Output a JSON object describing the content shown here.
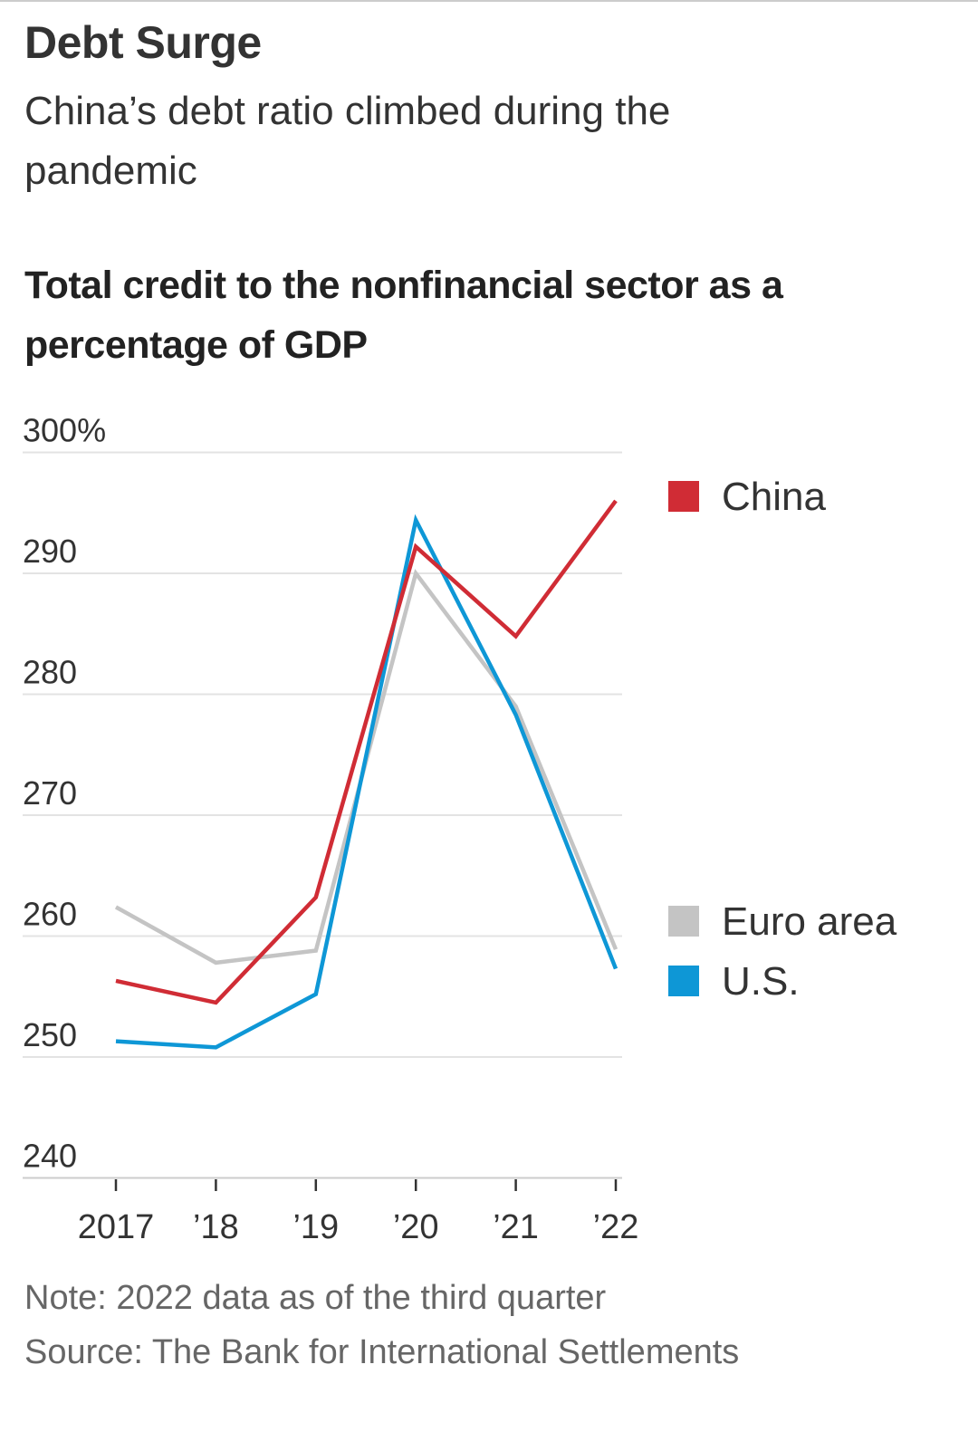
{
  "title": "Debt Surge",
  "subtitle": "China’s debt ratio climbed during the pandemic",
  "note": "Note: 2022 data as of the third quarter",
  "source": "Source: The Bank for International Settlements",
  "chart_data": {
    "type": "line",
    "title": "Total credit to the nonfinancial sector as a percentage of GDP",
    "xlabel": "",
    "ylabel": "",
    "x": [
      2017,
      2018,
      2019,
      2020,
      2021,
      2022
    ],
    "x_tick_labels": [
      "2017",
      "’18",
      "’19",
      "’20",
      "’21",
      "’22"
    ],
    "y_ticks": [
      300,
      290,
      280,
      270,
      260,
      250,
      240
    ],
    "y_tick_labels": [
      "300%",
      "290",
      "280",
      "270",
      "260",
      "250",
      "240"
    ],
    "ylim": [
      240,
      300
    ],
    "grid": true,
    "legend_placement": "right",
    "series": [
      {
        "name": "China",
        "color": "#d02c35",
        "values": [
          256.3,
          254.5,
          263.2,
          292.2,
          284.8,
          296.0
        ]
      },
      {
        "name": "Euro area",
        "color": "#c4c4c4",
        "values": [
          262.4,
          257.8,
          258.8,
          290.0,
          279.0,
          258.9
        ]
      },
      {
        "name": "U.S.",
        "color": "#0e97d6",
        "values": [
          251.3,
          250.8,
          255.2,
          294.4,
          278.3,
          257.3
        ]
      }
    ]
  }
}
